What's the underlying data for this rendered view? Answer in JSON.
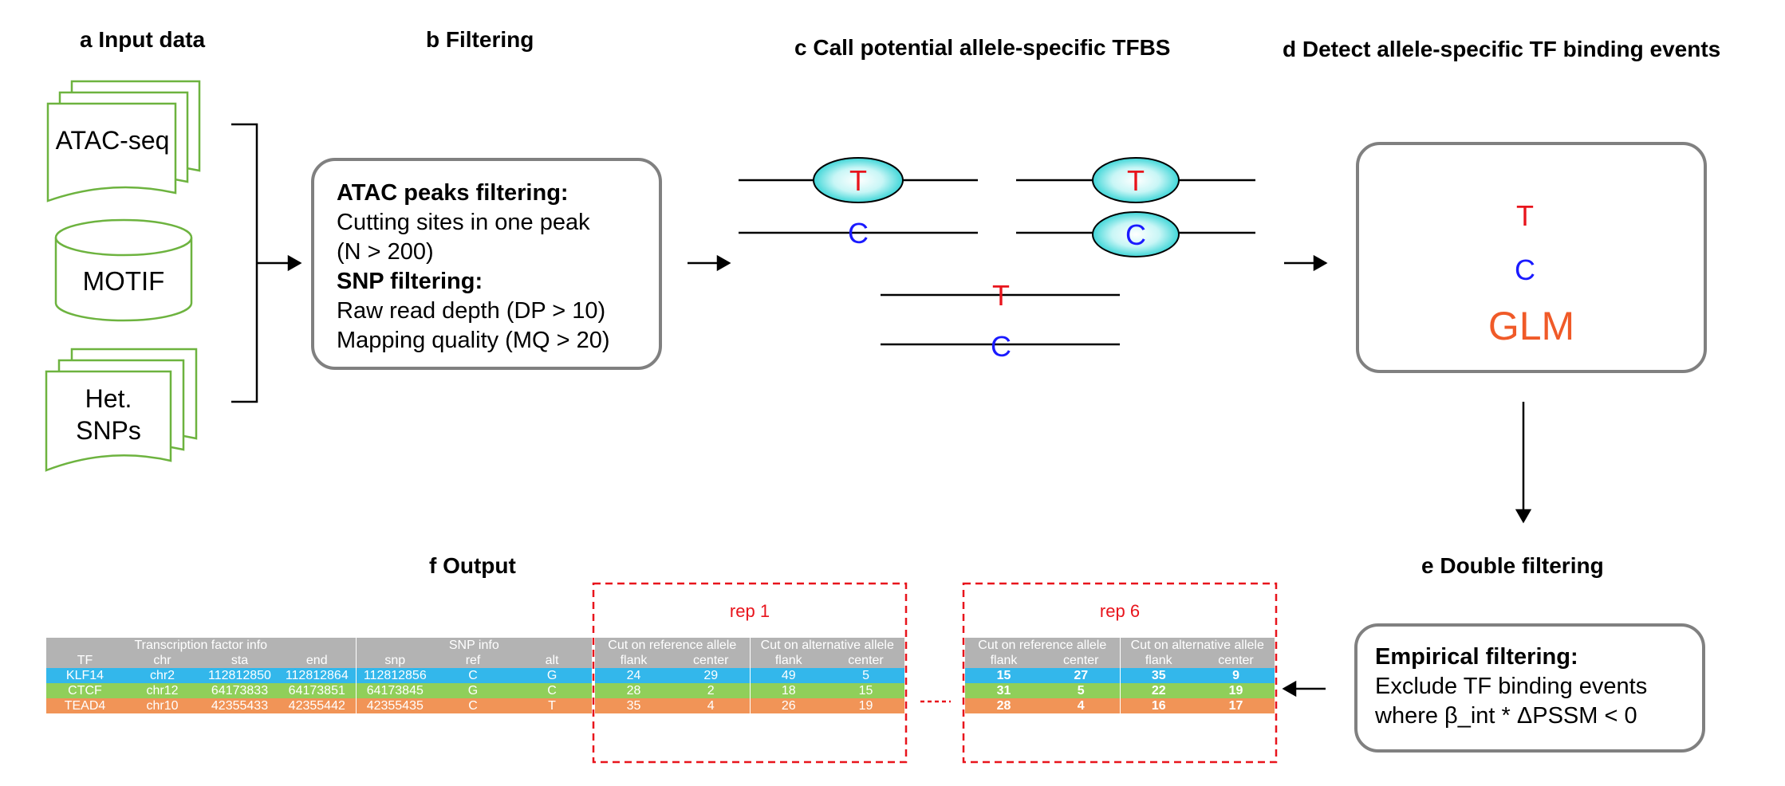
{
  "sections": {
    "a": "a Input data",
    "b": "b Filtering",
    "c": "c Call potential allele-specific TFBS",
    "d": "d Detect allele-specific TF binding events",
    "e": "e Double filtering",
    "f": "f Output"
  },
  "inputs": {
    "atac": "ATAC-seq",
    "motif": "MOTIF",
    "het_line1": "Het.",
    "het_line2": "SNPs"
  },
  "filtering": {
    "h1": "ATAC peaks filtering:",
    "l1": "Cutting sites in one peak",
    "l2": "(N > 200)",
    "h2": "SNP filtering:",
    "l3": "Raw read depth (DP > 10)",
    "l4": "Mapping quality (MQ > 20)"
  },
  "alleles": {
    "ref": "T",
    "alt": "C"
  },
  "glm": {
    "label": "GLM"
  },
  "double_filter": {
    "h1": "Empirical filtering:",
    "l1": "Exclude TF binding events",
    "l2": "where β_int * ΔPSSM < 0"
  },
  "output": {
    "group_tf": "Transcription factor info",
    "group_snp": "SNP info",
    "group_cut_ref": "Cut on reference allele",
    "group_cut_alt": "Cut on alternative allele",
    "columns": [
      "TF",
      "chr",
      "sta",
      "end",
      "snp",
      "ref",
      "alt"
    ],
    "cut_columns": [
      "flank",
      "center",
      "flank",
      "center"
    ],
    "rows": [
      [
        "KLF14",
        "chr2",
        "112812850",
        "112812864",
        "112812856",
        "C",
        "G"
      ],
      [
        "CTCF",
        "chr12",
        "64173833",
        "64173851",
        "64173845",
        "G",
        "C"
      ],
      [
        "TEAD4",
        "chr10",
        "42355433",
        "42355442",
        "42355435",
        "C",
        "T"
      ]
    ],
    "rep1_label": "rep 1",
    "rep1_values": [
      [
        "24",
        "29",
        "49",
        "5"
      ],
      [
        "28",
        "2",
        "18",
        "15"
      ],
      [
        "35",
        "4",
        "26",
        "19"
      ]
    ],
    "rep6_label": "rep 6",
    "rep6_values": [
      [
        "15",
        "27",
        "35",
        "9"
      ],
      [
        "31",
        "5",
        "22",
        "19"
      ],
      [
        "28",
        "4",
        "16",
        "17"
      ]
    ]
  },
  "colors": {
    "green_outline": "#6db33f",
    "box_border": "#808080",
    "ref_allele": "#e8141c",
    "alt_allele": "#1a1aff",
    "glm": "#f05a28",
    "dashed_red": "#e8141c",
    "row_klf14": "#33b7eb",
    "row_ctcf": "#90cf5a",
    "row_tead4": "#f19457",
    "header_gray": "#b3b3b3"
  }
}
